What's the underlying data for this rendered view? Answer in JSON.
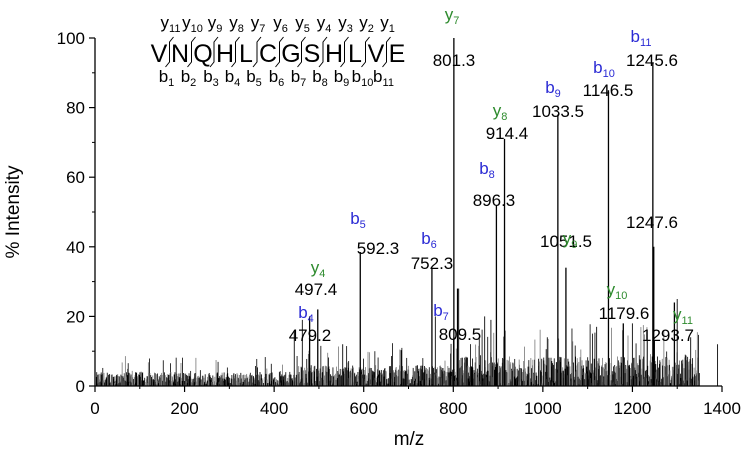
{
  "chart_data": {
    "type": "bar",
    "subtype": "mass-spectrum-stick-plot",
    "title": "",
    "xlabel": "m/z",
    "ylabel": "% Intensity",
    "xlim": [
      0,
      1400
    ],
    "ylim": [
      0,
      100
    ],
    "x_ticks": [
      0,
      200,
      400,
      600,
      800,
      1000,
      1200,
      1400
    ],
    "y_ticks": [
      0,
      20,
      40,
      60,
      80,
      100
    ],
    "grid": false,
    "legend": null,
    "colors": {
      "b_ion": "#2a2ad4",
      "y_ion": "#2e8b2e",
      "peak": "#000000",
      "noise": "#000000"
    },
    "peptide_sequence": [
      "V",
      "N",
      "Q",
      "H",
      "L",
      "C",
      "G",
      "S",
      "H",
      "L",
      "V",
      "E"
    ],
    "sequence_y_ions": [
      "11",
      "10",
      "9",
      "8",
      "7",
      "6",
      "5",
      "4",
      "3",
      "2",
      "1"
    ],
    "sequence_b_ions": [
      "1",
      "2",
      "3",
      "4",
      "5",
      "6",
      "7",
      "8",
      "9",
      "10",
      "11"
    ],
    "labeled_peaks": [
      {
        "mz": 479.2,
        "intensity": 20,
        "ion": "b",
        "index": "4",
        "label": "479.2"
      },
      {
        "mz": 497.4,
        "intensity": 22,
        "ion": "y",
        "index": "4",
        "label": "497.4"
      },
      {
        "mz": 592.3,
        "intensity": 38.5,
        "ion": "b",
        "index": "5",
        "label": "592.3"
      },
      {
        "mz": 752.3,
        "intensity": 34,
        "ion": "b",
        "index": "6",
        "label": "752.3"
      },
      {
        "mz": 801.3,
        "intensity": 100,
        "ion": "y",
        "index": "7",
        "label": "801.3"
      },
      {
        "mz": 809.5,
        "intensity": 28,
        "ion": "b",
        "index": "7",
        "label": "809.5"
      },
      {
        "mz": 896.3,
        "intensity": 52,
        "ion": "b",
        "index": "8",
        "label": "896.3"
      },
      {
        "mz": 914.4,
        "intensity": 71,
        "ion": "y",
        "index": "8",
        "label": "914.4"
      },
      {
        "mz": 1033.5,
        "intensity": 78,
        "ion": "b",
        "index": "9",
        "label": "1033.5"
      },
      {
        "mz": 1051.5,
        "intensity": 34,
        "ion": "y",
        "index": "9",
        "label": "1051.5"
      },
      {
        "mz": 1146.5,
        "intensity": 85,
        "ion": "b",
        "index": "10",
        "label": "1146.5"
      },
      {
        "mz": 1179.6,
        "intensity": 18,
        "ion": "y",
        "index": "10",
        "label": "1179.6"
      },
      {
        "mz": 1245.6,
        "intensity": 93,
        "ion": "b",
        "index": "11",
        "label": "1245.6"
      },
      {
        "mz": 1247.6,
        "intensity": 40,
        "ion": null,
        "index": null,
        "label": "1247.6"
      },
      {
        "mz": 1293.7,
        "intensity": 24,
        "ion": "y",
        "index": "11",
        "label": "1293.7"
      }
    ],
    "other_notable_peaks": [
      {
        "mz": 445,
        "intensity": 16
      },
      {
        "mz": 463,
        "intensity": 19
      },
      {
        "mz": 553,
        "intensity": 12
      },
      {
        "mz": 760,
        "intensity": 20
      },
      {
        "mz": 812,
        "intensity": 28
      },
      {
        "mz": 870,
        "intensity": 20
      },
      {
        "mz": 884,
        "intensity": 19
      },
      {
        "mz": 1010,
        "intensity": 14
      },
      {
        "mz": 1120,
        "intensity": 17
      },
      {
        "mz": 1200,
        "intensity": 18
      },
      {
        "mz": 1300,
        "intensity": 25
      },
      {
        "mz": 1330,
        "intensity": 14
      },
      {
        "mz": 1390,
        "intensity": 12
      }
    ]
  }
}
